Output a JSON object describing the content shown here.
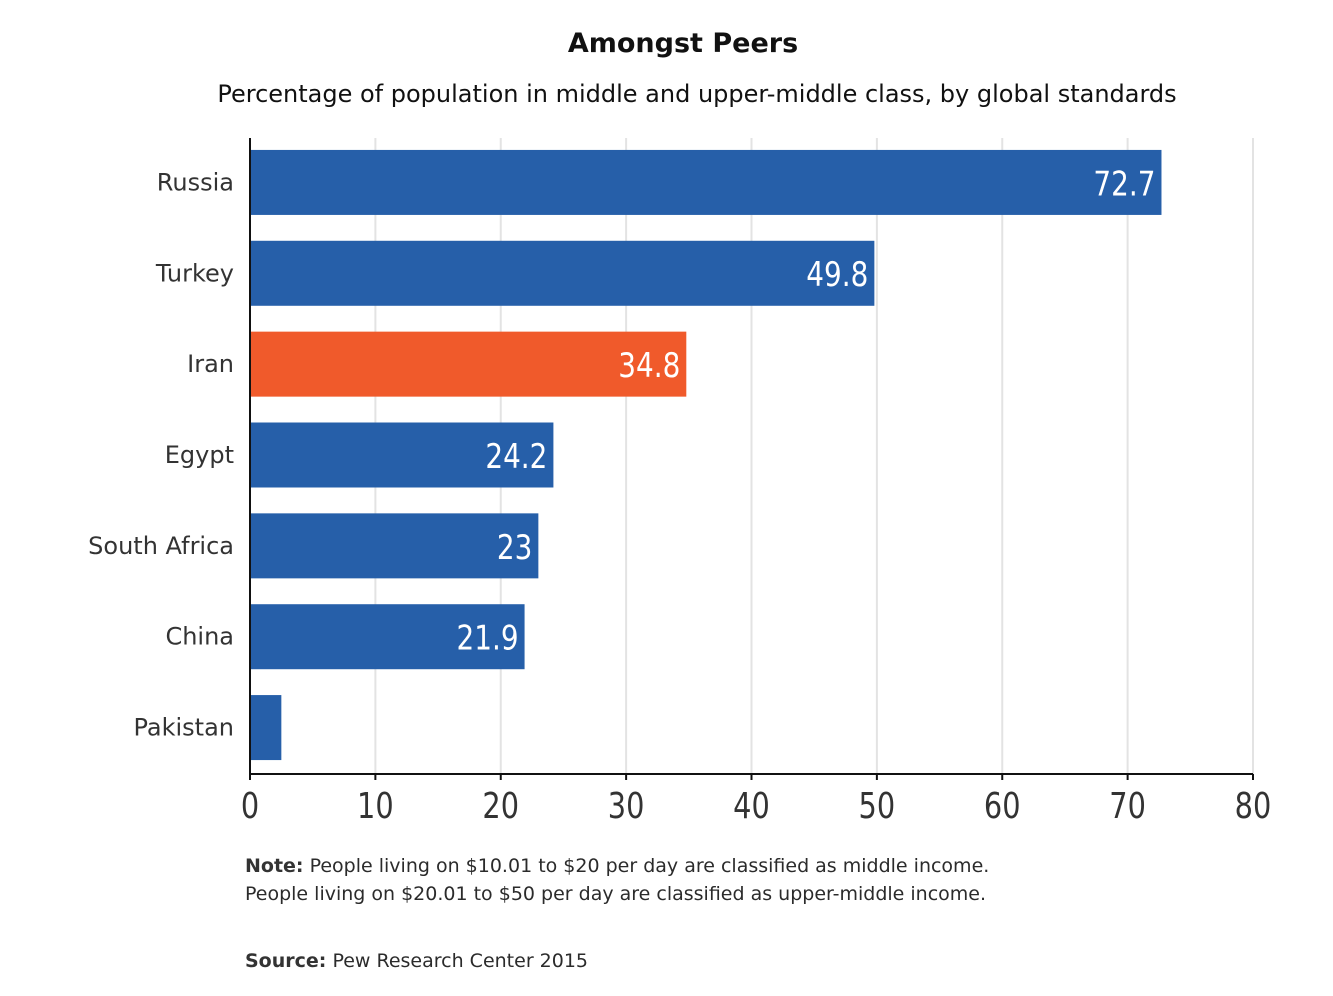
{
  "title": "Amongst Peers",
  "subtitle": "Percentage of population in middle and upper-middle class, by global standards",
  "note": {
    "label": "Note:",
    "line1": "People living on $10.01 to $20 per day are classified as middle income.",
    "line2": "People living on $20.01 to $50 per day are classified as upper-middle income."
  },
  "source": {
    "label": "Source:",
    "text": "Pew Research Center 2015"
  },
  "colors": {
    "bar": "#265fa9",
    "highlight": "#f05a2b",
    "grid": "#e3e3e3",
    "axis": "#111111",
    "label": "#333333",
    "value": "#ffffff"
  },
  "chart_data": {
    "type": "bar",
    "orientation": "horizontal",
    "categories": [
      "Russia",
      "Turkey",
      "Iran",
      "Egypt",
      "South Africa",
      "China",
      "Pakistan"
    ],
    "values": [
      72.7,
      49.8,
      34.8,
      24.2,
      23,
      21.9,
      2.5
    ],
    "value_labels": [
      "72.7",
      "49.8",
      "34.8",
      "24.2",
      "23",
      "21.9",
      ""
    ],
    "highlight": "Iran",
    "xlim": [
      0,
      80
    ],
    "xticks": [
      0,
      10,
      20,
      30,
      40,
      50,
      60,
      70,
      80
    ],
    "grid": true,
    "legend": "none"
  }
}
